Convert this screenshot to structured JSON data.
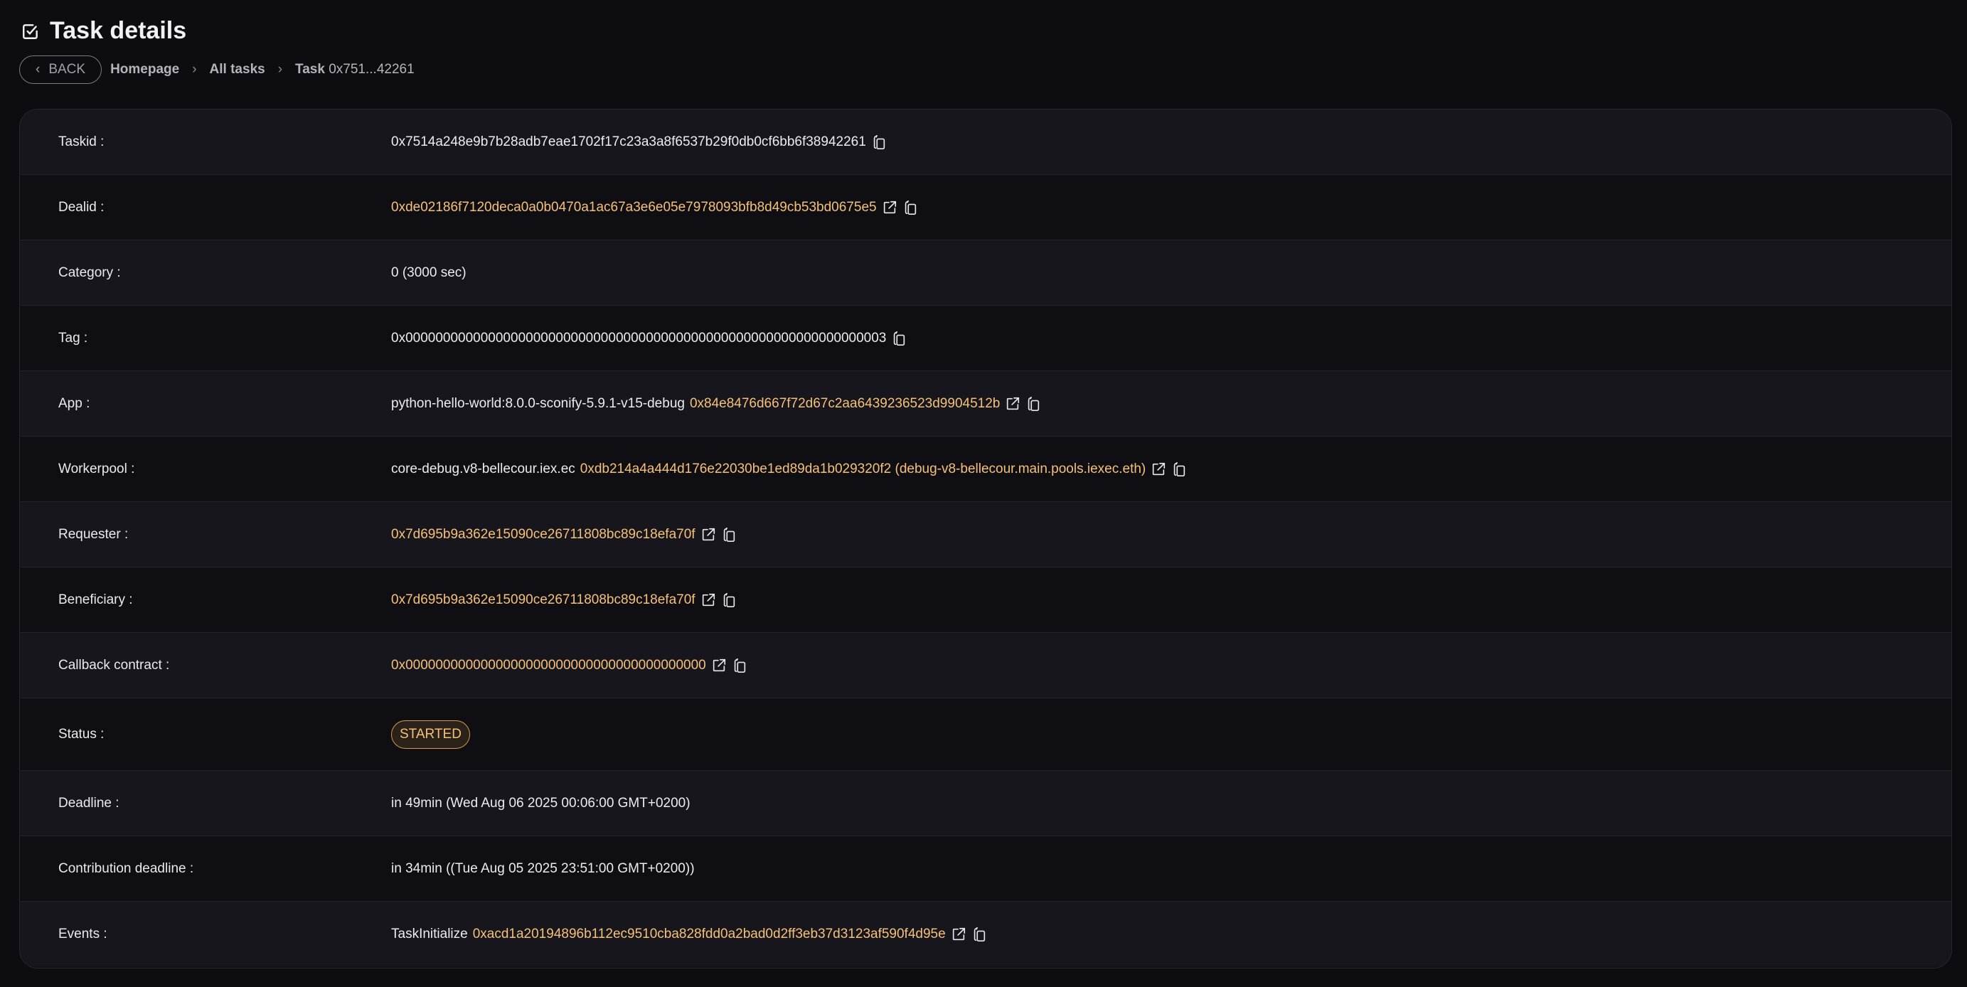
{
  "header": {
    "title": "Task details",
    "icon": "checkbox-icon"
  },
  "breadcrumb": {
    "back_label": "BACK",
    "items": [
      "Homepage",
      "All tasks"
    ],
    "current_prefix": "Task",
    "current_id": "0x751...42261"
  },
  "colors": {
    "accent": "#f5c07a",
    "background": "#0d0d11"
  },
  "details": {
    "taskid": {
      "label": "Taskid :",
      "value": "0x7514a248e9b7b28adb7eae1702f17c23a3a8f6537b29f0db0cf6bb6f38942261"
    },
    "dealid": {
      "label": "Dealid :",
      "value": "0xde02186f7120deca0a0b0470a1ac67a3e6e05e7978093bfb8d49cb53bd0675e5"
    },
    "category": {
      "label": "Category :",
      "value": "0 (3000 sec)"
    },
    "tag": {
      "label": "Tag :",
      "value": "0x0000000000000000000000000000000000000000000000000000000000000003"
    },
    "app": {
      "label": "App :",
      "name": "python-hello-world:8.0.0-sconify-5.9.1-v15-debug",
      "address": "0x84e8476d667f72d67c2aa6439236523d9904512b"
    },
    "workerpool": {
      "label": "Workerpool :",
      "name": "core-debug.v8-bellecour.iex.ec",
      "address": "0xdb214a4a444d176e22030be1ed89da1b029320f2 (debug-v8-bellecour.main.pools.iexec.eth)"
    },
    "requester": {
      "label": "Requester :",
      "value": "0x7d695b9a362e15090ce26711808bc89c18efa70f"
    },
    "beneficiary": {
      "label": "Beneficiary :",
      "value": "0x7d695b9a362e15090ce26711808bc89c18efa70f"
    },
    "callback": {
      "label": "Callback contract :",
      "value": "0x0000000000000000000000000000000000000000"
    },
    "status": {
      "label": "Status :",
      "value": "STARTED"
    },
    "deadline": {
      "label": "Deadline :",
      "value": "in 49min (Wed Aug 06 2025 00:06:00 GMT+0200)"
    },
    "contribution_deadline": {
      "label": "Contribution deadline :",
      "value": "in 34min ((Tue Aug 05 2025 23:51:00 GMT+0200))"
    },
    "events": {
      "label": "Events :",
      "name": "TaskInitialize",
      "tx": "0xacd1a20194896b112ec9510cba828fdd0a2bad0d2ff3eb37d3123af590f4d95e"
    }
  }
}
